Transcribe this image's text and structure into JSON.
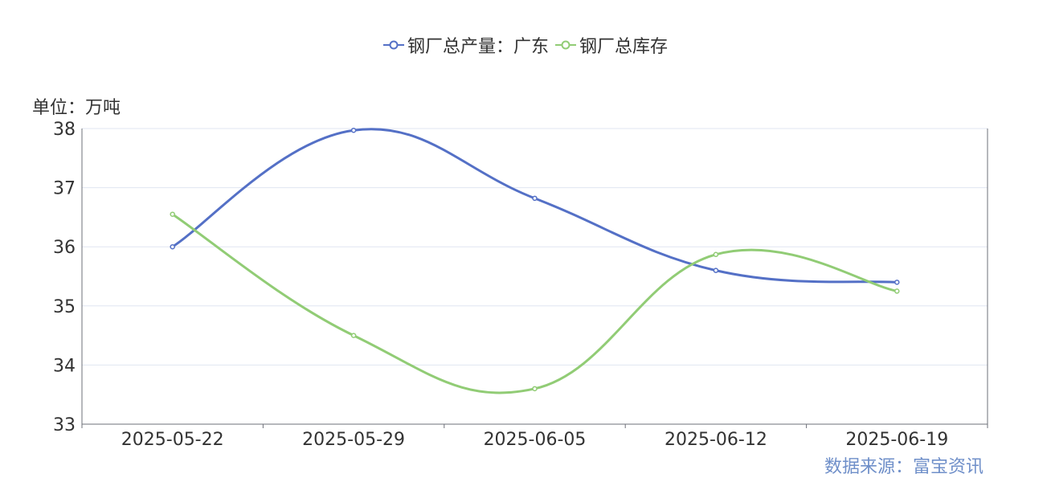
{
  "chart_data": {
    "type": "line",
    "smooth": true,
    "categories": [
      "2025-05-22",
      "2025-05-29",
      "2025-06-05",
      "2025-06-12",
      "2025-06-19"
    ],
    "series": [
      {
        "name": "钢厂总产量：广东",
        "color": "#5470c6",
        "values": [
          36.0,
          37.97,
          36.82,
          35.6,
          35.4
        ]
      },
      {
        "name": "钢厂总库存",
        "color": "#91cc75",
        "values": [
          36.55,
          34.5,
          33.6,
          35.87,
          35.25
        ]
      }
    ],
    "ylim": [
      33,
      38
    ],
    "yticks": [
      "33",
      "34",
      "35",
      "36",
      "37",
      "38"
    ],
    "unit_label": "单位：万吨",
    "source_label": "数据来源：富宝资讯",
    "grid": true,
    "legend_position": "top-center"
  }
}
